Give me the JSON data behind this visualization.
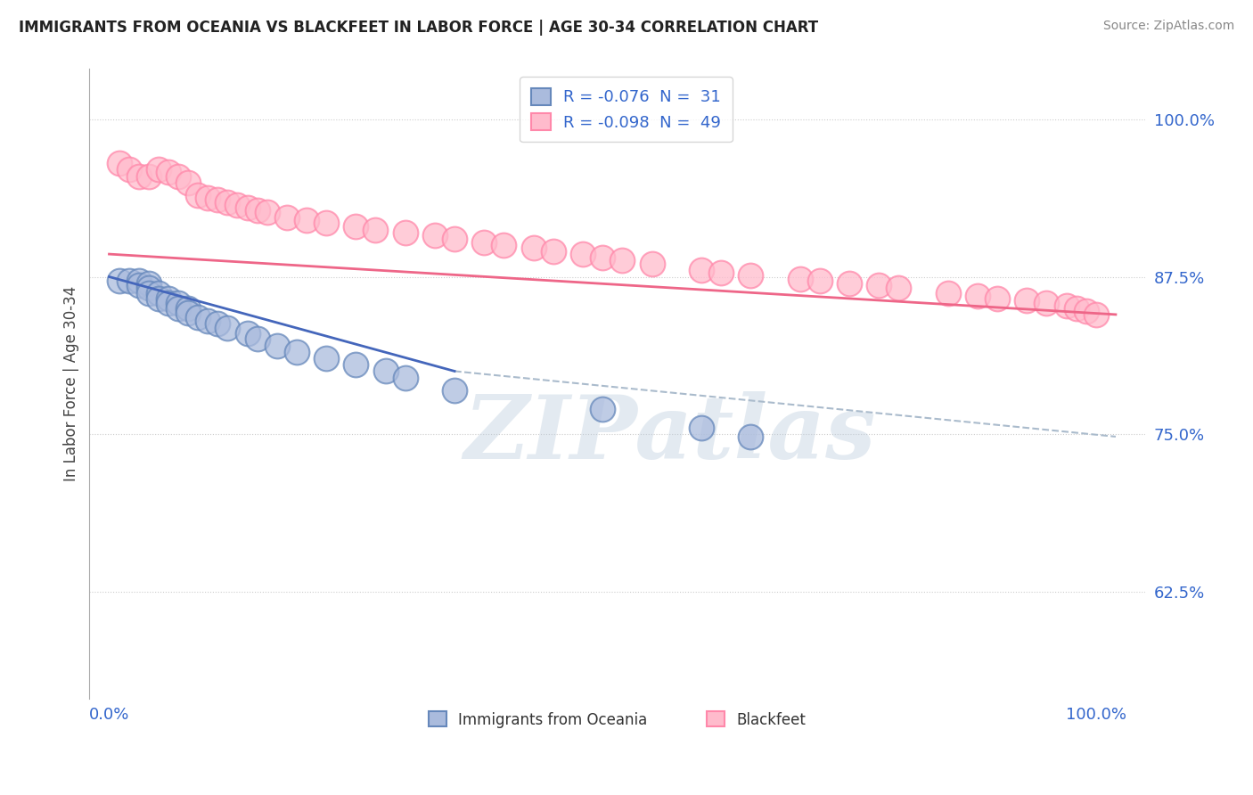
{
  "title": "IMMIGRANTS FROM OCEANIA VS BLACKFEET IN LABOR FORCE | AGE 30-34 CORRELATION CHART",
  "source": "Source: ZipAtlas.com",
  "ylabel": "In Labor Force | Age 30-34",
  "xlim": [
    -0.02,
    1.05
  ],
  "ylim": [
    0.54,
    1.04
  ],
  "yticks": [
    0.625,
    0.75,
    0.875,
    1.0
  ],
  "ytick_labels": [
    "62.5%",
    "75.0%",
    "87.5%",
    "100.0%"
  ],
  "xticks": [
    0.0,
    1.0
  ],
  "xtick_labels": [
    "0.0%",
    "100.0%"
  ],
  "legend1_label": "R = -0.076  N =  31",
  "legend2_label": "R = -0.098  N =  49",
  "legend_bottom1": "Immigrants from Oceania",
  "legend_bottom2": "Blackfeet",
  "blue_face": "#AABBDD",
  "blue_edge": "#6688BB",
  "pink_face": "#FFBBCC",
  "pink_edge": "#FF88AA",
  "blue_line_color": "#4466BB",
  "pink_line_color": "#EE6688",
  "dashed_line_color": "#AABBCC",
  "blue_scatter_x": [
    0.01,
    0.02,
    0.03,
    0.03,
    0.04,
    0.04,
    0.04,
    0.05,
    0.05,
    0.06,
    0.06,
    0.07,
    0.07,
    0.08,
    0.08,
    0.09,
    0.1,
    0.11,
    0.12,
    0.14,
    0.15,
    0.17,
    0.19,
    0.22,
    0.25,
    0.28,
    0.3,
    0.35,
    0.5,
    0.6,
    0.65
  ],
  "blue_scatter_y": [
    0.872,
    0.872,
    0.872,
    0.868,
    0.87,
    0.866,
    0.862,
    0.862,
    0.858,
    0.858,
    0.854,
    0.854,
    0.85,
    0.85,
    0.846,
    0.843,
    0.84,
    0.838,
    0.834,
    0.83,
    0.826,
    0.82,
    0.815,
    0.81,
    0.805,
    0.8,
    0.795,
    0.785,
    0.77,
    0.755,
    0.748
  ],
  "pink_scatter_x": [
    0.01,
    0.02,
    0.03,
    0.04,
    0.05,
    0.06,
    0.07,
    0.08,
    0.09,
    0.1,
    0.11,
    0.12,
    0.13,
    0.14,
    0.15,
    0.16,
    0.18,
    0.2,
    0.22,
    0.25,
    0.27,
    0.3,
    0.33,
    0.35,
    0.38,
    0.4,
    0.43,
    0.45,
    0.48,
    0.5,
    0.52,
    0.55,
    0.6,
    0.62,
    0.65,
    0.7,
    0.72,
    0.75,
    0.78,
    0.8,
    0.85,
    0.88,
    0.9,
    0.93,
    0.95,
    0.97,
    0.98,
    0.99,
    1.0
  ],
  "pink_scatter_y": [
    0.965,
    0.96,
    0.955,
    0.955,
    0.96,
    0.958,
    0.955,
    0.95,
    0.94,
    0.938,
    0.936,
    0.934,
    0.932,
    0.93,
    0.928,
    0.926,
    0.922,
    0.92,
    0.918,
    0.915,
    0.912,
    0.91,
    0.908,
    0.905,
    0.902,
    0.9,
    0.898,
    0.895,
    0.893,
    0.89,
    0.888,
    0.885,
    0.88,
    0.878,
    0.876,
    0.873,
    0.872,
    0.87,
    0.868,
    0.866,
    0.862,
    0.86,
    0.858,
    0.856,
    0.854,
    0.852,
    0.85,
    0.848,
    0.845
  ],
  "blue_trend_x0": 0.0,
  "blue_trend_x1": 0.35,
  "blue_trend_y0": 0.875,
  "blue_trend_y1": 0.8,
  "dashed_trend_x0": 0.35,
  "dashed_trend_x1": 1.02,
  "dashed_trend_y0": 0.8,
  "dashed_trend_y1": 0.748,
  "pink_trend_x0": 0.0,
  "pink_trend_x1": 1.02,
  "pink_trend_y0": 0.893,
  "pink_trend_y1": 0.845,
  "watermark": "ZIPatlas",
  "background_color": "#FFFFFF",
  "grid_color": "#CCCCCC"
}
